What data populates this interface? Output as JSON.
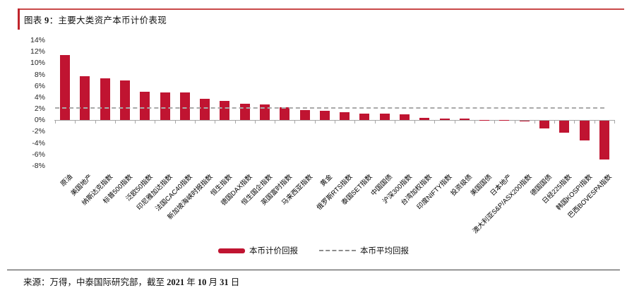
{
  "header": {
    "prefix": "图表 ",
    "num": "9",
    "rest": "：主要大类资产本币计价表现"
  },
  "footer": {
    "prefix": "来源：万得，中泰国际研究部，截至 ",
    "year": "2021",
    "year_unit": " 年 ",
    "month": "10",
    "month_unit": " 月 ",
    "day": "31",
    "day_unit": " 日"
  },
  "chart_data": {
    "type": "bar",
    "title": "主要大类资产本币计价表现",
    "categories": [
      "原油",
      "美国地产",
      "纳斯达克指数",
      "标普500指数",
      "泛欧50指数",
      "印尼雅加达指数",
      "法国CAC40指数",
      "新加坡海峡时报指数",
      "恒生指数",
      "德国DAX指数",
      "恒生国企指数",
      "英国富时指数",
      "马来西亚指数",
      "黄金",
      "俄罗斯RTS指数",
      "泰国SET指数",
      "中国国债",
      "沪深300指数",
      "台湾加权指数",
      "印度NIFTY指数",
      "投资级债",
      "美国国债",
      "日本地产",
      "澳大利亚S&P/ASX200指数",
      "德国国债",
      "日经225指数",
      "韩国KOSPI指数",
      "巴西BOVESPA指数"
    ],
    "values": [
      11.4,
      7.7,
      7.3,
      6.9,
      5.0,
      4.9,
      4.8,
      3.7,
      3.4,
      2.9,
      2.8,
      2.3,
      1.8,
      1.6,
      1.4,
      1.2,
      1.1,
      1.0,
      0.35,
      0.3,
      0.3,
      0.05,
      0.05,
      -0.05,
      -1.3,
      -2.1,
      -3.4,
      -6.8
    ],
    "series_name": "本币计价回报",
    "average_line": {
      "label": "本币平均回报",
      "value": 2.1
    },
    "legend": [
      {
        "label": "本币计价回报",
        "type": "bar"
      },
      {
        "label": "本币平均回报",
        "type": "dashed-line"
      }
    ],
    "legend_position": "bottom",
    "ylim": [
      -8,
      14
    ],
    "ytick_step": 2,
    "ytick_format": "percent",
    "grid": false,
    "colors": {
      "bar": "#C01431",
      "average_line": "#A9A9A9",
      "axis": "#A6A6A6",
      "accent_red": "#C0242C",
      "top_rule": "#C94A4A"
    }
  }
}
